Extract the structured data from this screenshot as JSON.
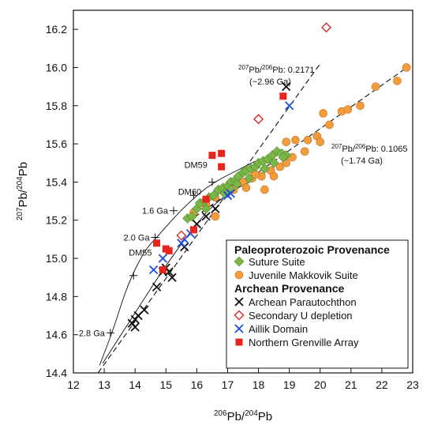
{
  "chart_data": {
    "type": "scatter",
    "xlim": [
      12,
      23
    ],
    "ylim": [
      14.4,
      16.3
    ],
    "x_ticks": [
      "12",
      "13",
      "14",
      "15",
      "16",
      "17",
      "18",
      "19",
      "20",
      "21",
      "22",
      "23"
    ],
    "y_ticks": [
      "14.4",
      "14.6",
      "14.8",
      "15.0",
      "15.2",
      "15.4",
      "15.6",
      "15.8",
      "16.0",
      "16.2"
    ],
    "xlabel": {
      "sup": "206",
      "base1": "Pb/",
      "sup2": "204",
      "base2": "Pb"
    },
    "ylabel": {
      "sup": "207",
      "base1": "Pb/",
      "sup2": "204",
      "base2": "Pb"
    },
    "legend": {
      "position": "bottom-right",
      "heading1": "Paleoproterozoic Provenance",
      "heading2": "Archean Provenance"
    },
    "series": [
      {
        "name": "Suture Suite",
        "marker": "diamond",
        "color": "#7ab648",
        "points": [
          [
            15.7,
            15.21
          ],
          [
            15.85,
            15.22
          ],
          [
            16.0,
            15.26
          ],
          [
            16.1,
            15.29
          ],
          [
            16.25,
            15.3
          ],
          [
            16.4,
            15.32
          ],
          [
            16.55,
            15.33
          ],
          [
            16.7,
            15.36
          ],
          [
            16.85,
            15.37
          ],
          [
            17.0,
            15.38
          ],
          [
            17.1,
            15.4
          ],
          [
            17.25,
            15.41
          ],
          [
            17.35,
            15.43
          ],
          [
            17.5,
            15.45
          ],
          [
            17.6,
            15.46
          ],
          [
            17.75,
            15.47
          ],
          [
            17.9,
            15.48
          ],
          [
            18.0,
            15.5
          ],
          [
            18.15,
            15.51
          ],
          [
            18.3,
            15.52
          ],
          [
            18.45,
            15.54
          ],
          [
            18.6,
            15.56
          ],
          [
            18.75,
            15.55
          ],
          [
            18.9,
            15.54
          ],
          [
            16.9,
            15.34
          ],
          [
            17.3,
            15.39
          ],
          [
            17.7,
            15.42
          ],
          [
            18.2,
            15.47
          ],
          [
            18.5,
            15.5
          ],
          [
            18.8,
            15.53
          ],
          [
            16.3,
            15.26
          ],
          [
            17.1,
            15.36
          ]
        ]
      },
      {
        "name": "Juvenile Makkovik Suite",
        "marker": "circle",
        "color": "#f39c3c",
        "points": [
          [
            15.9,
            15.24
          ],
          [
            16.3,
            15.28
          ],
          [
            16.6,
            15.32
          ],
          [
            16.9,
            15.35
          ],
          [
            17.2,
            15.36
          ],
          [
            17.5,
            15.4
          ],
          [
            17.8,
            15.42
          ],
          [
            18.1,
            15.43
          ],
          [
            18.4,
            15.46
          ],
          [
            18.7,
            15.48
          ],
          [
            18.9,
            15.5
          ],
          [
            19.1,
            15.53
          ],
          [
            18.9,
            15.61
          ],
          [
            19.2,
            15.62
          ],
          [
            19.6,
            15.62
          ],
          [
            19.9,
            15.64
          ],
          [
            20.0,
            15.61
          ],
          [
            20.3,
            15.7
          ],
          [
            20.7,
            15.77
          ],
          [
            20.9,
            15.78
          ],
          [
            21.3,
            15.8
          ],
          [
            21.8,
            15.9
          ],
          [
            22.5,
            15.93
          ],
          [
            22.8,
            16.0
          ],
          [
            20.1,
            15.76
          ],
          [
            16.2,
            15.29
          ],
          [
            17.0,
            15.36
          ],
          [
            17.6,
            15.37
          ],
          [
            18.2,
            15.36
          ],
          [
            18.5,
            15.43
          ],
          [
            16.6,
            15.22
          ],
          [
            17.9,
            15.44
          ],
          [
            19.5,
            15.56
          ]
        ]
      },
      {
        "name": "Archean Parautochthon",
        "marker": "x",
        "color": "#111111",
        "points": [
          [
            13.9,
            14.66
          ],
          [
            14.0,
            14.68
          ],
          [
            14.1,
            14.7
          ],
          [
            14.0,
            14.64
          ],
          [
            14.3,
            14.73
          ],
          [
            14.7,
            14.85
          ],
          [
            14.9,
            14.93
          ],
          [
            15.0,
            14.95
          ],
          [
            15.2,
            14.9
          ],
          [
            15.6,
            15.06
          ],
          [
            16.0,
            15.18
          ],
          [
            16.3,
            15.22
          ],
          [
            16.6,
            15.26
          ],
          [
            17.0,
            15.33
          ],
          [
            18.9,
            15.9
          ],
          [
            15.1,
            14.93
          ]
        ]
      },
      {
        "name": "Secondary U depletion",
        "marker": "open-diamond",
        "color": "#d62728",
        "points": [
          [
            20.2,
            16.21
          ],
          [
            18.0,
            15.73
          ],
          [
            15.5,
            15.12
          ]
        ]
      },
      {
        "name": "Aillik Domain",
        "marker": "x",
        "color": "#1f4fe0",
        "points": [
          [
            14.6,
            14.94
          ],
          [
            14.9,
            15.0
          ],
          [
            15.5,
            15.08
          ],
          [
            15.6,
            15.1
          ],
          [
            15.8,
            15.13
          ],
          [
            17.0,
            15.33
          ],
          [
            17.1,
            15.34
          ],
          [
            19.0,
            15.8
          ]
        ]
      },
      {
        "name": "Northern Grenville Array",
        "marker": "square",
        "color": "#e8251c",
        "points": [
          [
            14.7,
            15.08
          ],
          [
            15.0,
            15.05
          ],
          [
            15.1,
            15.04
          ],
          [
            15.9,
            15.15
          ],
          [
            16.5,
            15.54
          ],
          [
            16.8,
            15.55
          ],
          [
            16.8,
            15.48
          ],
          [
            18.8,
            15.85
          ],
          [
            16.3,
            15.31
          ],
          [
            14.9,
            14.94
          ]
        ]
      }
    ],
    "curves": [
      {
        "name": "evolution curve",
        "points": [
          [
            12.85,
            14.44
          ],
          [
            13.3,
            14.63
          ],
          [
            13.75,
            14.86
          ],
          [
            14.3,
            15.04
          ],
          [
            14.7,
            15.11
          ],
          [
            15.3,
            15.22
          ],
          [
            15.8,
            15.3
          ],
          [
            16.3,
            15.37
          ],
          [
            16.8,
            15.42
          ],
          [
            17.3,
            15.46
          ],
          [
            17.9,
            15.51
          ],
          [
            18.4,
            15.54
          ]
        ]
      },
      {
        "name": "curve 2",
        "points": [
          [
            12.95,
            14.45
          ],
          [
            14.1,
            14.74
          ],
          [
            14.9,
            14.94
          ],
          [
            15.7,
            15.12
          ],
          [
            16.4,
            15.26
          ],
          [
            17.1,
            15.35
          ],
          [
            17.7,
            15.4
          ]
        ]
      }
    ],
    "ticks_on_curve": [
      {
        "x": 13.2,
        "y": 14.61,
        "label": "2.8 Ga"
      },
      {
        "x": 13.95,
        "y": 14.91,
        "label": ""
      },
      {
        "x": 14.65,
        "y": 15.11,
        "label": "2.0 Ga"
      },
      {
        "x": 15.25,
        "y": 15.25,
        "label": "1.6 Ga"
      },
      {
        "x": 15.9,
        "y": 15.33,
        "label": ""
      },
      {
        "x": 16.5,
        "y": 15.4,
        "label": ""
      }
    ],
    "point_labels": [
      {
        "x": 16.5,
        "y": 15.54,
        "label": "DM59",
        "anchor": "end"
      },
      {
        "x": 16.3,
        "y": 15.4,
        "label": "DM60",
        "anchor": "end"
      },
      {
        "x": 14.7,
        "y": 15.08,
        "label": "DM55",
        "anchor": "end"
      }
    ],
    "regression_lines": [
      {
        "x1": 12.8,
        "y1": 14.4,
        "x2": 20.0,
        "y2": 16.02,
        "label_sup": "207",
        "label_base1": "Pb/",
        "label_sup2": "206",
        "label_base2": "Pb: 0.2171",
        "label2": "(~2.96 Ga)"
      },
      {
        "x1": 15.7,
        "y1": 15.19,
        "x2": 22.9,
        "y2": 16.01,
        "label_sup": "207",
        "label_base1": "Pb/",
        "label_sup2": "206",
        "label_base2": "Pb: 0.1065",
        "label2": "(~1.74 Ga)"
      }
    ]
  }
}
